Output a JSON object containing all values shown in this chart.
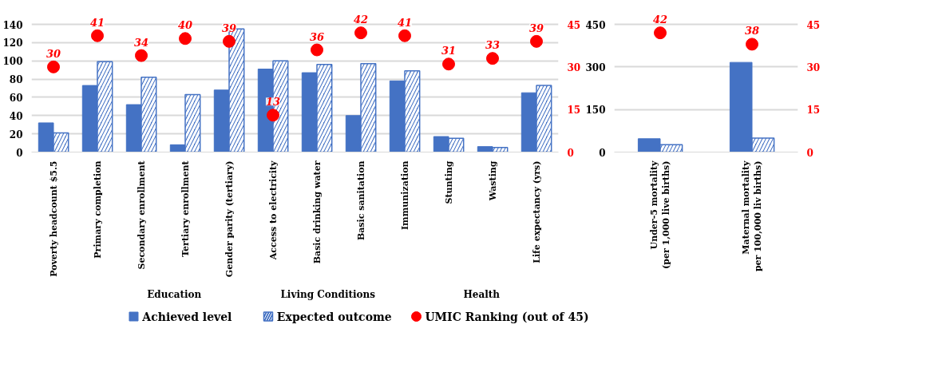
{
  "chart_data": [
    {
      "type": "bar",
      "categories": [
        "Poverty headcount $5.5",
        "Primary completion",
        "Secondary enrollment",
        "Tertiary enrollment",
        "Gender parity (tertiary)",
        "Access to electricity",
        "Basic drinking water",
        "Basic sanitation",
        "Immunization",
        "Stunting",
        "Wasting",
        "Life expectancy (yrs)"
      ],
      "series": [
        {
          "name": "Achieved level",
          "color": "#4472c4",
          "values": [
            32,
            73,
            52,
            8,
            68,
            91,
            87,
            40,
            78,
            17,
            6,
            65
          ]
        },
        {
          "name": "Expected outcome",
          "color": "#4472c4",
          "values": [
            21,
            99,
            82,
            63,
            135,
            100,
            96,
            97,
            89,
            15,
            5,
            73
          ]
        },
        {
          "name": "UMIC Ranking (out of 45)",
          "type": "scatter",
          "axis": "y2",
          "color": "#ff0000",
          "marker": "circle",
          "values": [
            30,
            41,
            34,
            40,
            39,
            13,
            36,
            42,
            41,
            31,
            33,
            39
          ],
          "value_labels": [
            "30",
            "41",
            "34",
            "40",
            "39",
            "13",
            "36",
            "42",
            "41",
            "31",
            "33",
            "39"
          ]
        }
      ],
      "annotations": [
        "Education",
        "Living Conditions",
        "Health"
      ],
      "ylim": [
        0,
        140
      ],
      "yticks": [
        0,
        20,
        40,
        60,
        80,
        100,
        120,
        140
      ],
      "y2lim": [
        0,
        45
      ],
      "y2ticks": [
        0,
        15,
        30,
        45
      ],
      "grid": "y",
      "legend": "bottom"
    },
    {
      "type": "bar",
      "categories": [
        "Under-5 mortality\n(per 1,000 live births)",
        "Maternal mortality\nper 100,000 liv births)"
      ],
      "series": [
        {
          "color": "#4472c4",
          "values": [
            47,
            316
          ]
        },
        {
          "color": "#4472c4",
          "values": [
            26,
            49
          ]
        },
        {
          "type": "scatter",
          "axis": "y2",
          "color": "#ff0000",
          "marker": "circle",
          "values": [
            42,
            38
          ],
          "value_labels": [
            "42",
            "38"
          ]
        }
      ],
      "ylim": [
        0,
        450
      ],
      "yticks": [
        0,
        150,
        300,
        450
      ],
      "y2lim": [
        0,
        45
      ],
      "y2ticks": [
        0,
        15,
        30,
        45
      ],
      "grid": "y"
    }
  ]
}
